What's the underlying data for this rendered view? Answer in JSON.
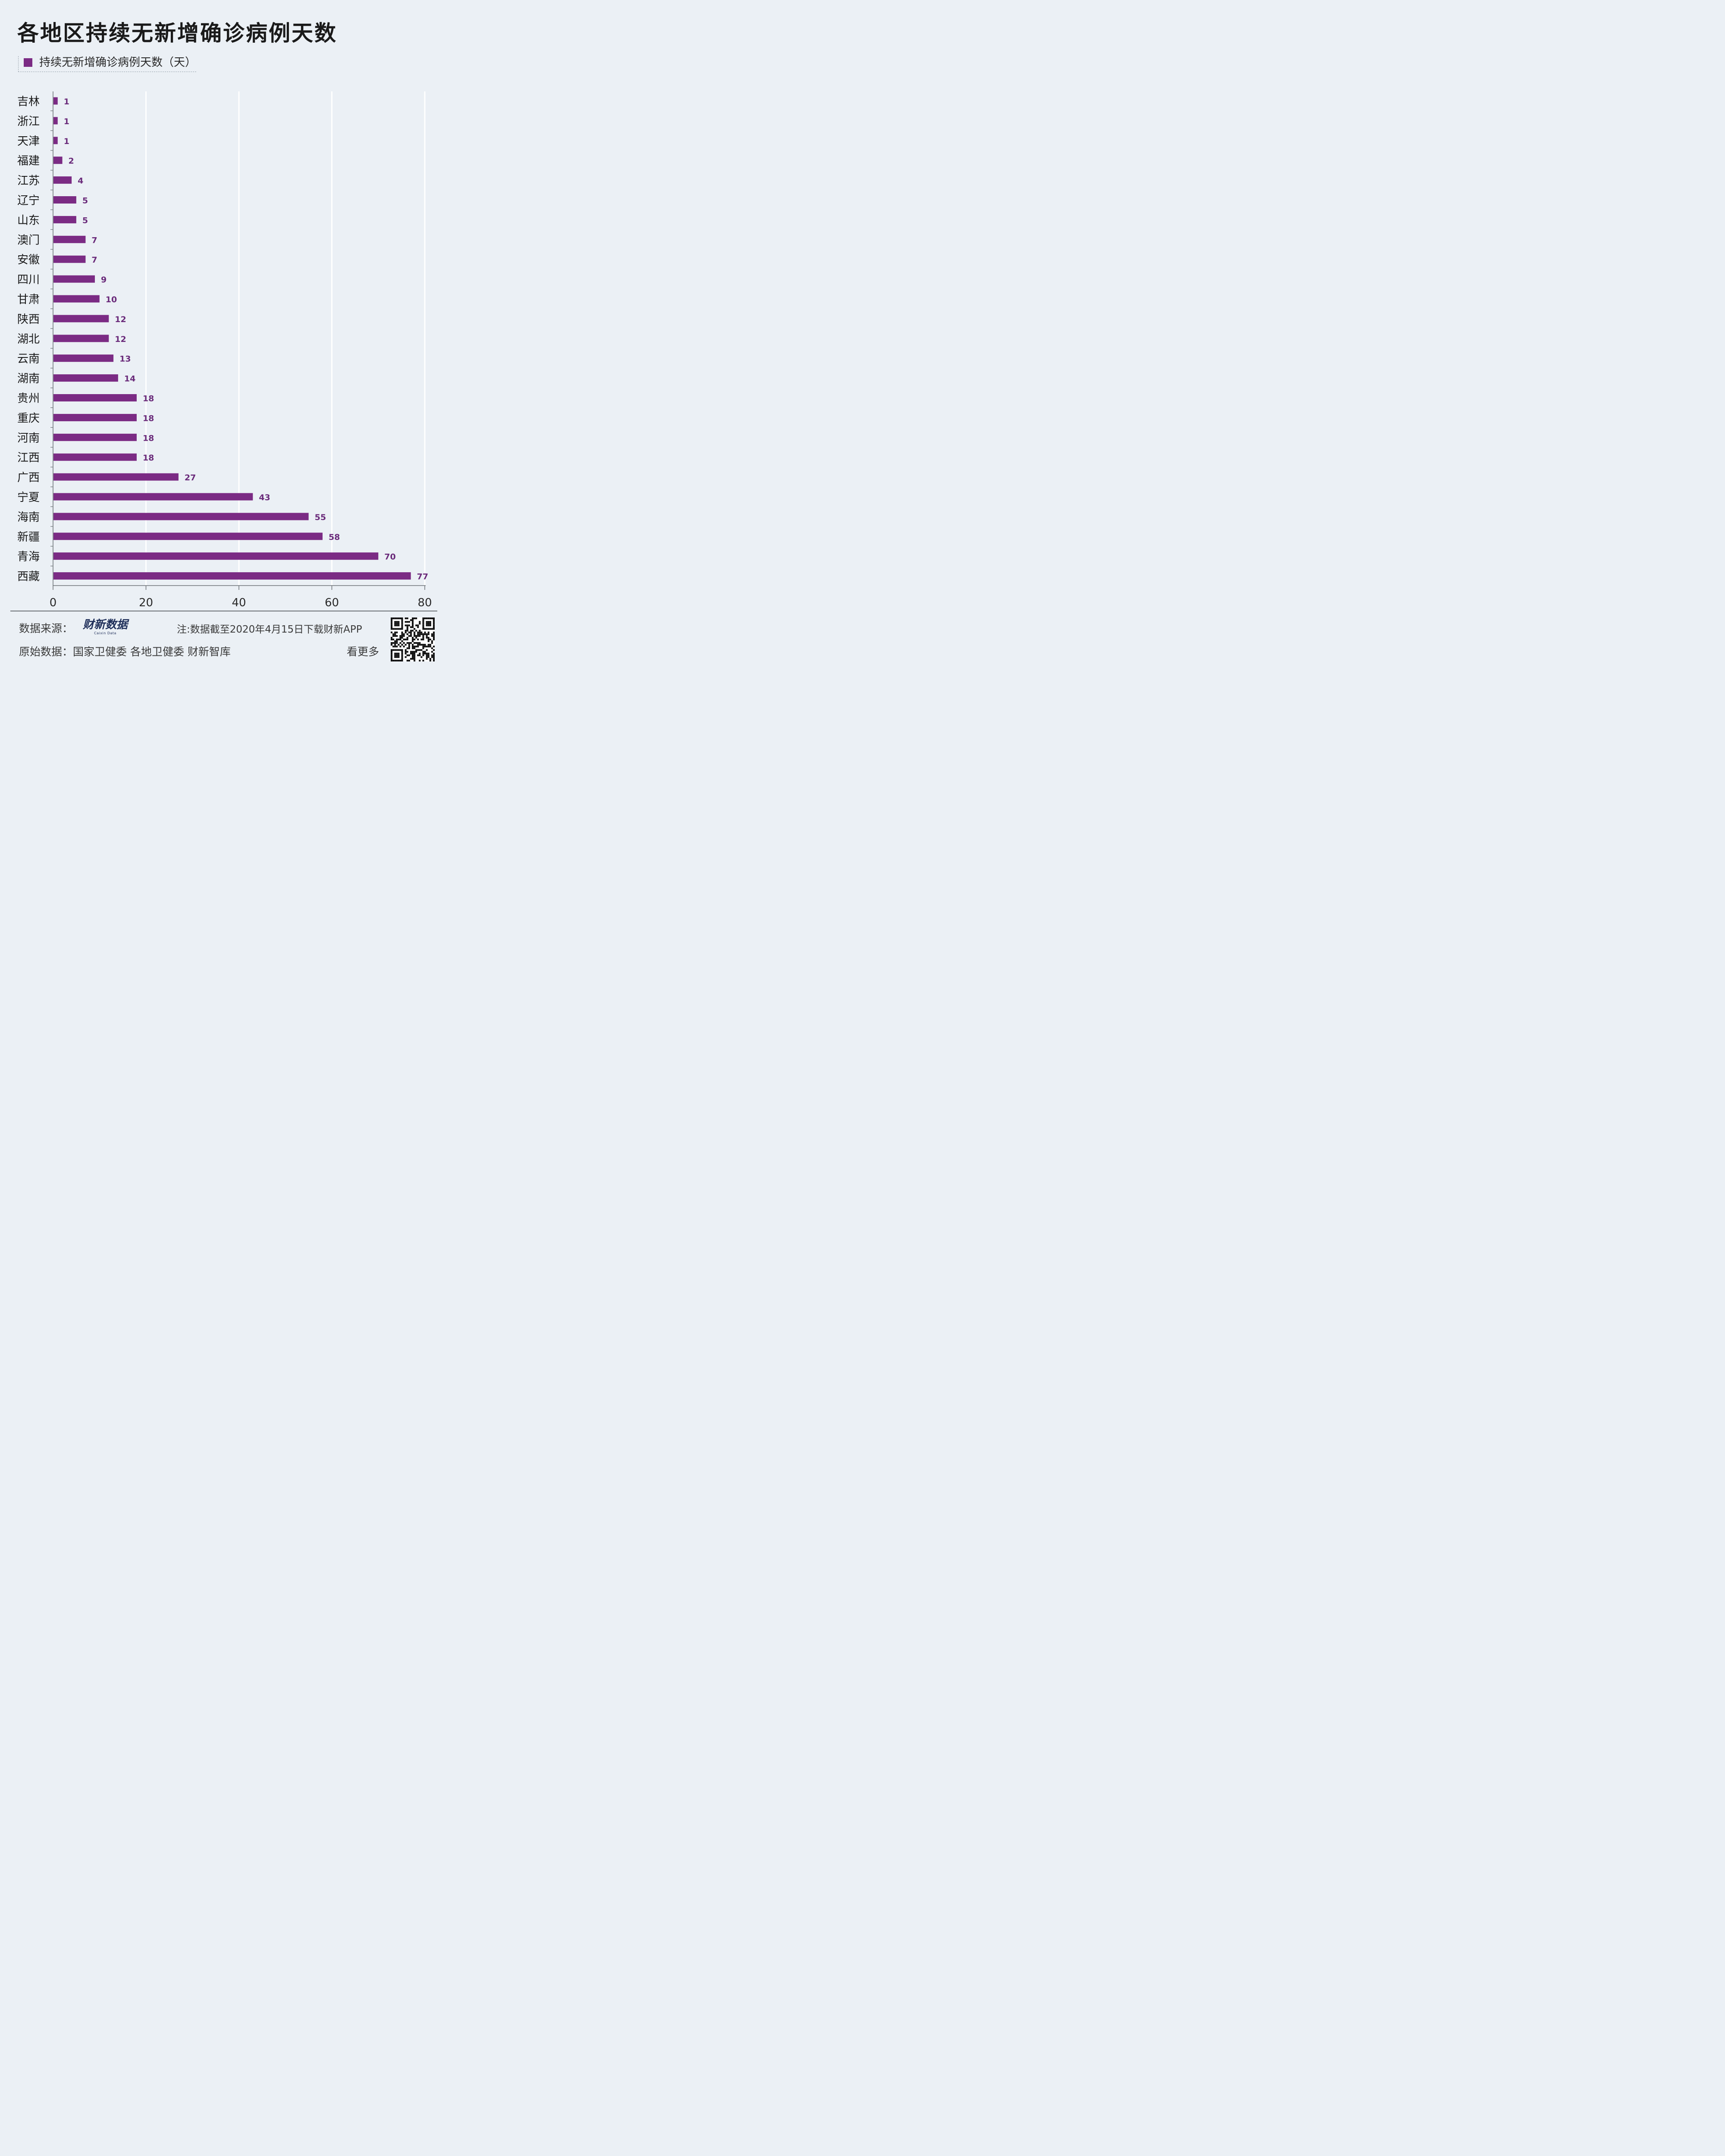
{
  "title": "各地区持续无新增确诊病例天数",
  "legend": {
    "label": "持续无新增确诊病例天数（天）"
  },
  "colors": {
    "bar": "#7b2b84",
    "value_label": "#6a2a7a",
    "grid": "#ffffff",
    "axis": "#6b7075"
  },
  "chart_data": {
    "type": "bar",
    "orientation": "horizontal",
    "categories": [
      "吉林",
      "浙江",
      "天津",
      "福建",
      "江苏",
      "辽宁",
      "山东",
      "澳门",
      "安徽",
      "四川",
      "甘肃",
      "陕西",
      "湖北",
      "云南",
      "湖南",
      "贵州",
      "重庆",
      "河南",
      "江西",
      "广西",
      "宁夏",
      "海南",
      "新疆",
      "青海",
      "西藏"
    ],
    "values": [
      1,
      1,
      1,
      2,
      4,
      5,
      5,
      7,
      7,
      9,
      10,
      12,
      12,
      13,
      14,
      18,
      18,
      18,
      18,
      27,
      43,
      55,
      58,
      70,
      77
    ],
    "xlim": [
      0,
      80
    ],
    "xticks": [
      0,
      20,
      40,
      60,
      80
    ],
    "grid": true,
    "legend_position": "top-left"
  },
  "footer": {
    "source_label": "数据来源：",
    "brand": "财新数据",
    "brand_sub": "Caixin Data",
    "note": "注:数据截至2020年4月15日下载财新APP",
    "original_label": "原始数据：",
    "original_sources": "国家卫健委 各地卫健委 财新智库",
    "more": "看更多"
  },
  "qr_icon": "qr-code-icon"
}
